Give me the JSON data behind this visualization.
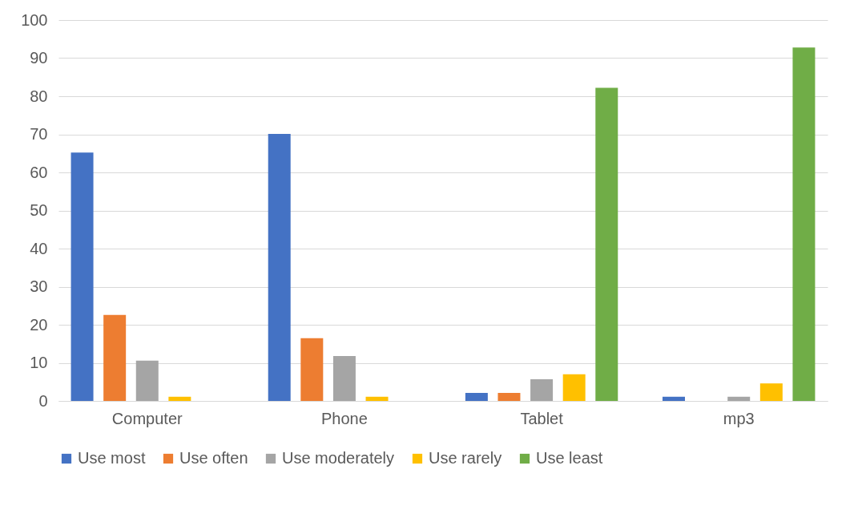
{
  "chart_data": {
    "type": "bar",
    "categories": [
      "Computer",
      "Phone",
      "Tablet",
      "mp3"
    ],
    "series": [
      {
        "name": "Use most",
        "color": "#4472c4",
        "values": [
          65.2,
          70.1,
          2.1,
          1.1
        ]
      },
      {
        "name": "Use often",
        "color": "#ed7d31",
        "values": [
          22.6,
          16.5,
          2.1,
          0
        ]
      },
      {
        "name": "Use moderately",
        "color": "#a5a5a5",
        "values": [
          10.6,
          11.8,
          5.7,
          1.1
        ]
      },
      {
        "name": "Use rarely",
        "color": "#ffc000",
        "values": [
          1.1,
          1.1,
          7,
          4.6
        ]
      },
      {
        "name": "Use least",
        "color": "#70ad47",
        "values": [
          0,
          0,
          82.2,
          92.8
        ]
      }
    ],
    "ylim": [
      0,
      100
    ],
    "yticks": [
      0,
      10,
      20,
      30,
      40,
      50,
      60,
      70,
      80,
      90,
      100
    ],
    "grid": "y",
    "legend": "bottom"
  }
}
